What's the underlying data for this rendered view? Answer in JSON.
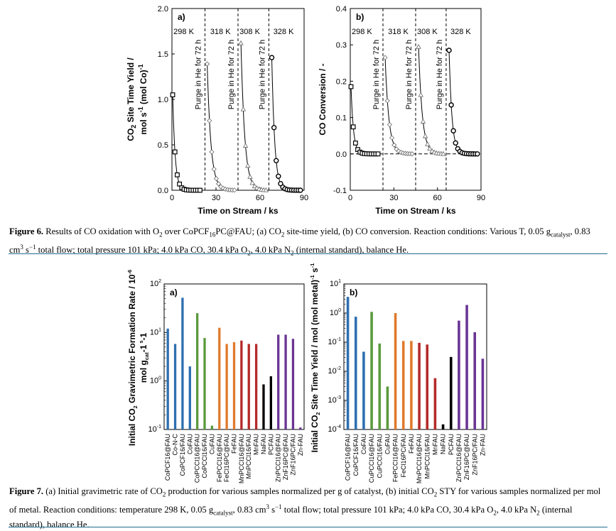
{
  "figure6": {
    "caption_label": "Figure 6.",
    "caption_parts": [
      " Results of CO oxidation with O",
      "2",
      " over CoPCF",
      "16",
      "PC@FAU; (a) CO",
      "2",
      " site-time yield, (b) CO conversion. Reaction conditions: Various T, 0.05 g",
      "catalyst",
      ", 0.83 cm",
      "3",
      " s",
      "−1",
      " total flow; total pressure 101 kPa; 4.0 kPa CO, 30.4 kPa O",
      "2",
      ", 4.0 kPa N",
      "2",
      " (internal standard), balance He."
    ],
    "purge_label": "Purge in He for 72 h",
    "temperatures": [
      "298 K",
      "318 K",
      "308 K",
      "328 K"
    ],
    "segment_starts": [
      0,
      22.5,
      45,
      66
    ],
    "xlabel": "Time on Stream / ks"
  },
  "figure7": {
    "caption_label": "Figure 7.",
    "caption_parts": [
      " (a) Initial gravimetric rate of CO",
      "2",
      " production for various samples normalized per g of catalyst, (b) initial CO",
      "2",
      " STY for various samples normalized per mol of metal. Reaction conditions: temperature 298 K, 0.05 g",
      "catalyst",
      ", 0.83 cm",
      "3",
      " s",
      "−1",
      " total flow; total pressure 101 kPa; 4.0 kPa CO, 30.4 kPa O",
      "2",
      ", 4.0 kPa N",
      "2",
      " (internal standard), balance He."
    ]
  },
  "chart_data": [
    {
      "id": "fig6a",
      "type": "scatter",
      "panel_label": "a)",
      "xlabel": "Time on Stream / ks",
      "ylabel_parts": [
        "CO",
        "2",
        " Site Time Yield /"
      ],
      "ylabel2_parts": [
        "mol s",
        "-1",
        " (mol Co)",
        "-1"
      ],
      "xlim": [
        0,
        90
      ],
      "ylim": [
        0,
        2.0
      ],
      "xticks": [
        0,
        30,
        60,
        90
      ],
      "yticks": [
        0.0,
        0.5,
        1.0,
        1.5,
        2.0
      ],
      "ytick_labels": [
        "0.0",
        "0.5",
        "1.0",
        "1.5",
        "2.0"
      ],
      "segments": [
        {
          "t0": 0.5,
          "y0": 1.05,
          "tau": 1.7,
          "n": 13,
          "dt": 1.55,
          "marker": "square"
        },
        {
          "t0": 24,
          "y0": 1.39,
          "tau": 2.6,
          "n": 13,
          "dt": 1.55,
          "marker": "diamond"
        },
        {
          "t0": 47,
          "y0": 1.62,
          "tau": 2.6,
          "n": 12,
          "dt": 1.55,
          "marker": "triangle"
        },
        {
          "t0": 68,
          "y0": 1.46,
          "tau": 2.0,
          "n": 14,
          "dt": 1.5,
          "marker": "circle"
        }
      ]
    },
    {
      "id": "fig6b",
      "type": "scatter",
      "panel_label": "b)",
      "xlabel": "Time on Stream / ks",
      "ylabel_parts": [
        "CO Conversion / -"
      ],
      "xlim": [
        0,
        90
      ],
      "ylim": [
        -0.1,
        0.4
      ],
      "xticks": [
        0,
        30,
        60,
        90
      ],
      "yticks": [
        -0.1,
        0.0,
        0.1,
        0.2,
        0.3,
        0.4
      ],
      "ytick_labels": [
        "-0.1",
        "0.0",
        "0.1",
        "0.2",
        "0.3",
        "0.4"
      ],
      "segments": [
        {
          "t0": 0.5,
          "y0": 0.185,
          "tau": 1.7,
          "n": 13,
          "dt": 1.55,
          "marker": "square"
        },
        {
          "t0": 24,
          "y0": 0.265,
          "tau": 2.6,
          "n": 13,
          "dt": 1.55,
          "marker": "diamond"
        },
        {
          "t0": 47,
          "y0": 0.295,
          "tau": 2.6,
          "n": 12,
          "dt": 1.55,
          "marker": "triangle"
        },
        {
          "t0": 68,
          "y0": 0.285,
          "tau": 2.0,
          "n": 14,
          "dt": 1.5,
          "marker": "circle"
        }
      ]
    },
    {
      "id": "fig7a",
      "type": "bar",
      "panel_label": "a)",
      "ylabel_parts": [
        "Initial CO",
        "2",
        " Gravimetric Formation Rate / 10",
        "-6"
      ],
      "ylabel2_parts": [
        "mol g",
        "cat",
        "-1",
        " s",
        "-1"
      ],
      "yscale": "log",
      "ylim": [
        0.1,
        100
      ],
      "ytick_exponents": [
        "-1",
        "0",
        "1",
        "2"
      ],
      "categories": [
        "CoPCF16@FAU",
        "Co-N-C",
        "CoPCF16/FAU",
        "CoFAU",
        "CoPCCl16@FAU",
        "CoPCCl16/FAU",
        "CuFAU",
        "FePCCl16@FAU",
        "FeCl16PC@FAU",
        "FeFAU",
        "MnPCCl16@FAU",
        "MnPCCl16/FAU",
        "MnFAU",
        "NaFAU",
        "PCFAU",
        "ZnPCCl16@FAU",
        "ZnF16PC@FAU",
        "ZnF16PC/FAU",
        "Zn-FAU"
      ],
      "values": [
        12,
        5.8,
        52,
        2.0,
        25,
        7.7,
        0.12,
        12.5,
        5.8,
        6.3,
        6.8,
        5.8,
        5.8,
        0.85,
        1.25,
        9.0,
        9.0,
        7.4,
        0.11
      ],
      "colors": [
        "#2e6fb0",
        "#2e6fb0",
        "#2e6fb0",
        "#2e6fb0",
        "#5a9a3c",
        "#5a9a3c",
        "#5a9a3c",
        "#e07a2c",
        "#e07a2c",
        "#e07a2c",
        "#b52a2a",
        "#b52a2a",
        "#b52a2a",
        "#000000",
        "#000000",
        "#6a3594",
        "#6a3594",
        "#6a3594",
        "#6a3594"
      ]
    },
    {
      "id": "fig7b",
      "type": "bar",
      "panel_label": "b)",
      "ylabel_parts": [
        "Initial CO",
        "2",
        " Site Time Yield / mol (mol metal)",
        "-1",
        " s",
        "-1"
      ],
      "yscale": "log",
      "ylim": [
        0.0001,
        10
      ],
      "ytick_exponents": [
        "-4",
        "-3",
        "-2",
        "-1",
        "0",
        "1"
      ],
      "categories": [
        "CoPCF16@FAU",
        "CoPCF16/FAU",
        "CoFAU",
        "CuPCCl16@FAU",
        "CuPCCl16/FAU",
        "CuFAU",
        "FePCCl16@FAU",
        "FeCl16PC/FAU",
        "FeFAU",
        "MnPCCl16@FAU",
        "MnPCCl16/FAU",
        "MnFAU",
        "NaFAU",
        "PCFAU",
        "ZnPCCl16@FAU",
        "ZnF16PC@FAU",
        "ZnF16PC/FAU",
        "Zn-FAU"
      ],
      "values": [
        3.6,
        0.75,
        0.047,
        1.1,
        0.09,
        0.003,
        1.0,
        0.11,
        0.11,
        0.095,
        0.083,
        0.0058,
        0.00015,
        0.031,
        0.55,
        1.9,
        0.22,
        0.027
      ],
      "colors": [
        "#2e6fb0",
        "#2e6fb0",
        "#2e6fb0",
        "#5a9a3c",
        "#5a9a3c",
        "#5a9a3c",
        "#e07a2c",
        "#e07a2c",
        "#e07a2c",
        "#b52a2a",
        "#b52a2a",
        "#b52a2a",
        "#000000",
        "#000000",
        "#6a3594",
        "#6a3594",
        "#6a3594",
        "#6a3594"
      ]
    }
  ]
}
